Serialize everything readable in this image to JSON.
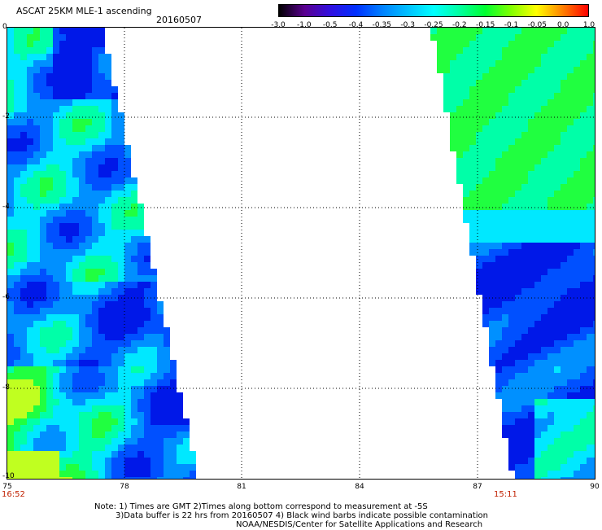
{
  "header": {
    "title": "ASCAT 25KM MLE-1 ascending",
    "date": "20160507"
  },
  "colorbar": {
    "labels": [
      "-3.0",
      "-1.0",
      "-0.5",
      "-0.4",
      "-0.35",
      "-0.3",
      "-0.25",
      "-0.2",
      "-0.15",
      "-0.1",
      "-0.05",
      "0.0",
      "1.0"
    ],
    "colors": [
      "#000000",
      "#5a0090",
      "#3010e0",
      "#0030ff",
      "#0080ff",
      "#00c0ff",
      "#00ffff",
      "#00ffa0",
      "#00ff30",
      "#80ff00",
      "#ffff00",
      "#ff8000",
      "#ff0000"
    ]
  },
  "map": {
    "y_axis_labels": [
      "0",
      "-2",
      "-4",
      "-6",
      "-8",
      "-10"
    ],
    "x_axis_labels": [
      "75",
      "78",
      "81",
      "84",
      "87",
      "90"
    ],
    "left_time": "16:52",
    "right_time": "15:11",
    "swath_palette": {
      "deep_blue": "#0018e8",
      "blue": "#0050ff",
      "light_blue": "#0090ff",
      "cyan": "#00e8ff",
      "aqua_green": "#00ffa8",
      "green": "#20ff40",
      "yellow_green": "#c0ff20"
    }
  },
  "notes": {
    "line1": "Note: 1) Times are GMT 2)Times along bottom correspond to measurement at -5S",
    "line2": "3)Data buffer is 22 hrs from 20160507 4) Black wind barbs indicate possible contamination",
    "line3": "NOAA/NESDIS/Center for Satellite Applications and Research"
  }
}
